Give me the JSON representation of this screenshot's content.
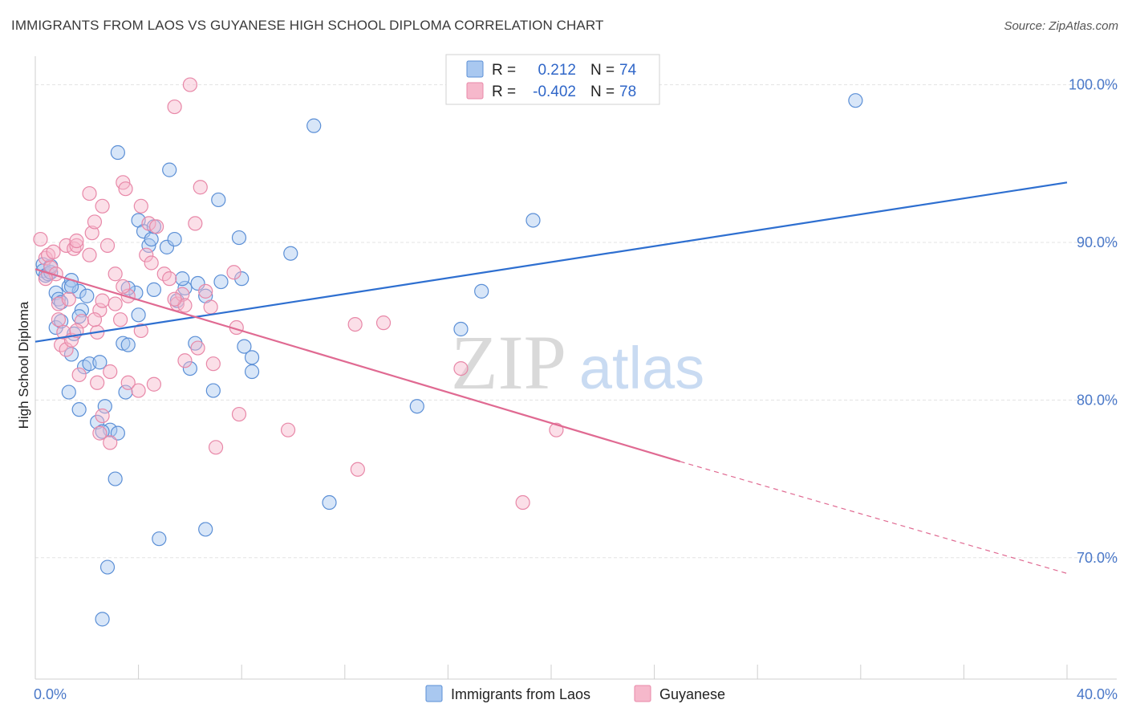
{
  "title": "IMMIGRANTS FROM LAOS VS GUYANESE HIGH SCHOOL DIPLOMA CORRELATION CHART",
  "source": "Source: ZipAtlas.com",
  "watermark": {
    "zip": "ZIP",
    "atlas": "atlas"
  },
  "legend": {
    "series1": {
      "r_label": "R = ",
      "r_value": "0.212",
      "n_label": "N = ",
      "n_value": "74"
    },
    "series2": {
      "r_label": "R = ",
      "r_value": "-0.402",
      "n_label": "N = ",
      "n_value": "78"
    }
  },
  "colors": {
    "laos_fill": "#a9c8f0",
    "laos_stroke": "#5b8fd6",
    "laos_line": "#2e6fd0",
    "guy_fill": "#f6b8cb",
    "guy_stroke": "#e888a8",
    "guy_line": "#e06a92",
    "tick_text": "#4a78c8",
    "grid": "#e3e3e3"
  },
  "chart_data": {
    "type": "scatter",
    "title": "IMMIGRANTS FROM LAOS VS GUYANESE HIGH SCHOOL DIPLOMA CORRELATION CHART",
    "xlabel": "",
    "ylabel": "High School Diploma",
    "xlim": [
      0,
      40
    ],
    "ylim": [
      62.3,
      101.2
    ],
    "x_ticks": [
      0,
      40
    ],
    "x_tick_labels": [
      "0.0%",
      "40.0%"
    ],
    "y_ticks": [
      70,
      80,
      90,
      100
    ],
    "y_tick_labels": [
      "70.0%",
      "80.0%",
      "90.0%",
      "100.0%"
    ],
    "grid": true,
    "legend_position": "top-center",
    "series": [
      {
        "name": "Immigrants from Laos",
        "R": 0.212,
        "N": 74,
        "trend": {
          "x": [
            0,
            40
          ],
          "y": [
            83.7,
            93.8
          ]
        },
        "points": [
          [
            0.3,
            88.6
          ],
          [
            0.3,
            88.2
          ],
          [
            0.4,
            87.9
          ],
          [
            0.5,
            88.0
          ],
          [
            0.6,
            88.1
          ],
          [
            0.6,
            88.5
          ],
          [
            0.8,
            86.8
          ],
          [
            0.9,
            86.4
          ],
          [
            1.0,
            86.2
          ],
          [
            0.8,
            84.6
          ],
          [
            1.0,
            85.0
          ],
          [
            1.3,
            87.2
          ],
          [
            1.4,
            87.6
          ],
          [
            1.7,
            86.9
          ],
          [
            2.0,
            86.6
          ],
          [
            1.8,
            85.7
          ],
          [
            1.7,
            85.3
          ],
          [
            1.5,
            84.2
          ],
          [
            1.4,
            82.9
          ],
          [
            1.3,
            80.5
          ],
          [
            1.7,
            79.4
          ],
          [
            1.9,
            82.1
          ],
          [
            2.1,
            82.3
          ],
          [
            2.5,
            82.4
          ],
          [
            2.4,
            78.6
          ],
          [
            2.7,
            79.6
          ],
          [
            2.9,
            78.1
          ],
          [
            2.6,
            78.0
          ],
          [
            3.2,
            77.9
          ],
          [
            3.1,
            75.0
          ],
          [
            2.8,
            69.4
          ],
          [
            2.6,
            66.1
          ],
          [
            3.2,
            95.7
          ],
          [
            3.4,
            83.6
          ],
          [
            3.6,
            83.5
          ],
          [
            3.5,
            80.5
          ],
          [
            3.9,
            86.8
          ],
          [
            4.0,
            85.4
          ],
          [
            4.0,
            91.4
          ],
          [
            4.2,
            90.7
          ],
          [
            4.4,
            89.8
          ],
          [
            4.5,
            90.2
          ],
          [
            4.6,
            91.0
          ],
          [
            5.1,
            89.7
          ],
          [
            5.2,
            94.6
          ],
          [
            5.4,
            90.2
          ],
          [
            5.5,
            86.3
          ],
          [
            5.8,
            87.1
          ],
          [
            5.7,
            87.7
          ],
          [
            6.0,
            82.0
          ],
          [
            6.2,
            83.6
          ],
          [
            6.3,
            87.4
          ],
          [
            6.6,
            86.6
          ],
          [
            6.9,
            80.6
          ],
          [
            7.1,
            92.7
          ],
          [
            7.2,
            87.5
          ],
          [
            7.9,
            90.3
          ],
          [
            8.0,
            87.7
          ],
          [
            8.1,
            83.4
          ],
          [
            8.4,
            82.7
          ],
          [
            8.4,
            81.8
          ],
          [
            9.9,
            89.3
          ],
          [
            10.8,
            97.4
          ],
          [
            11.4,
            73.5
          ],
          [
            14.8,
            79.6
          ],
          [
            16.5,
            84.5
          ],
          [
            17.3,
            86.9
          ],
          [
            19.3,
            91.4
          ],
          [
            6.6,
            71.8
          ],
          [
            4.8,
            71.2
          ],
          [
            4.6,
            87.0
          ],
          [
            3.6,
            87.1
          ],
          [
            31.8,
            99.0
          ],
          [
            1.4,
            87.2
          ]
        ]
      },
      {
        "name": "Guyanese",
        "R": -0.402,
        "N": 78,
        "trend": {
          "x": [
            0,
            25
          ],
          "y": [
            88.3,
            76.1
          ]
        },
        "trend_dashed": {
          "x": [
            25,
            40
          ],
          "y": [
            76.1,
            69.0
          ]
        },
        "points": [
          [
            0.2,
            90.2
          ],
          [
            0.4,
            89.0
          ],
          [
            0.5,
            89.2
          ],
          [
            0.7,
            89.4
          ],
          [
            0.6,
            88.4
          ],
          [
            0.8,
            88.0
          ],
          [
            0.9,
            86.1
          ],
          [
            0.9,
            85.1
          ],
          [
            1.1,
            84.3
          ],
          [
            1.0,
            83.5
          ],
          [
            1.2,
            83.2
          ],
          [
            1.4,
            83.8
          ],
          [
            1.2,
            89.8
          ],
          [
            1.5,
            89.6
          ],
          [
            1.6,
            89.8
          ],
          [
            1.6,
            90.1
          ],
          [
            2.1,
            89.2
          ],
          [
            2.2,
            90.6
          ],
          [
            2.3,
            91.3
          ],
          [
            2.1,
            93.1
          ],
          [
            2.6,
            92.3
          ],
          [
            2.8,
            89.8
          ],
          [
            3.1,
            88.0
          ],
          [
            3.4,
            93.8
          ],
          [
            3.5,
            93.4
          ],
          [
            4.1,
            92.3
          ],
          [
            4.4,
            91.2
          ],
          [
            4.7,
            91.0
          ],
          [
            4.3,
            89.2
          ],
          [
            4.5,
            88.7
          ],
          [
            5.0,
            88.0
          ],
          [
            5.2,
            87.7
          ],
          [
            5.5,
            86.1
          ],
          [
            5.7,
            86.7
          ],
          [
            5.8,
            86.0
          ],
          [
            6.2,
            91.2
          ],
          [
            6.4,
            93.5
          ],
          [
            6.6,
            86.9
          ],
          [
            6.8,
            85.9
          ],
          [
            7.0,
            77.0
          ],
          [
            6.9,
            82.3
          ],
          [
            6.3,
            83.3
          ],
          [
            5.8,
            82.5
          ],
          [
            5.4,
            86.4
          ],
          [
            7.7,
            88.1
          ],
          [
            7.8,
            84.6
          ],
          [
            7.9,
            79.1
          ],
          [
            9.8,
            78.1
          ],
          [
            12.5,
            75.6
          ],
          [
            12.4,
            84.8
          ],
          [
            13.5,
            84.9
          ],
          [
            16.5,
            82.0
          ],
          [
            18.9,
            73.5
          ],
          [
            20.2,
            78.1
          ],
          [
            6.0,
            100.0
          ],
          [
            5.4,
            98.6
          ],
          [
            2.6,
            79.0
          ],
          [
            2.9,
            77.3
          ],
          [
            2.5,
            77.9
          ],
          [
            2.9,
            81.8
          ],
          [
            2.4,
            81.1
          ],
          [
            3.6,
            81.1
          ],
          [
            4.0,
            80.6
          ],
          [
            4.6,
            81.0
          ],
          [
            1.7,
            81.6
          ],
          [
            1.8,
            85.0
          ],
          [
            2.4,
            84.3
          ],
          [
            2.5,
            85.7
          ],
          [
            3.3,
            85.1
          ],
          [
            3.6,
            86.6
          ],
          [
            2.6,
            86.3
          ],
          [
            3.1,
            86.1
          ],
          [
            1.3,
            86.4
          ],
          [
            2.3,
            85.1
          ],
          [
            0.4,
            87.7
          ],
          [
            1.6,
            84.4
          ],
          [
            3.4,
            87.2
          ],
          [
            4.1,
            84.4
          ]
        ]
      }
    ]
  }
}
